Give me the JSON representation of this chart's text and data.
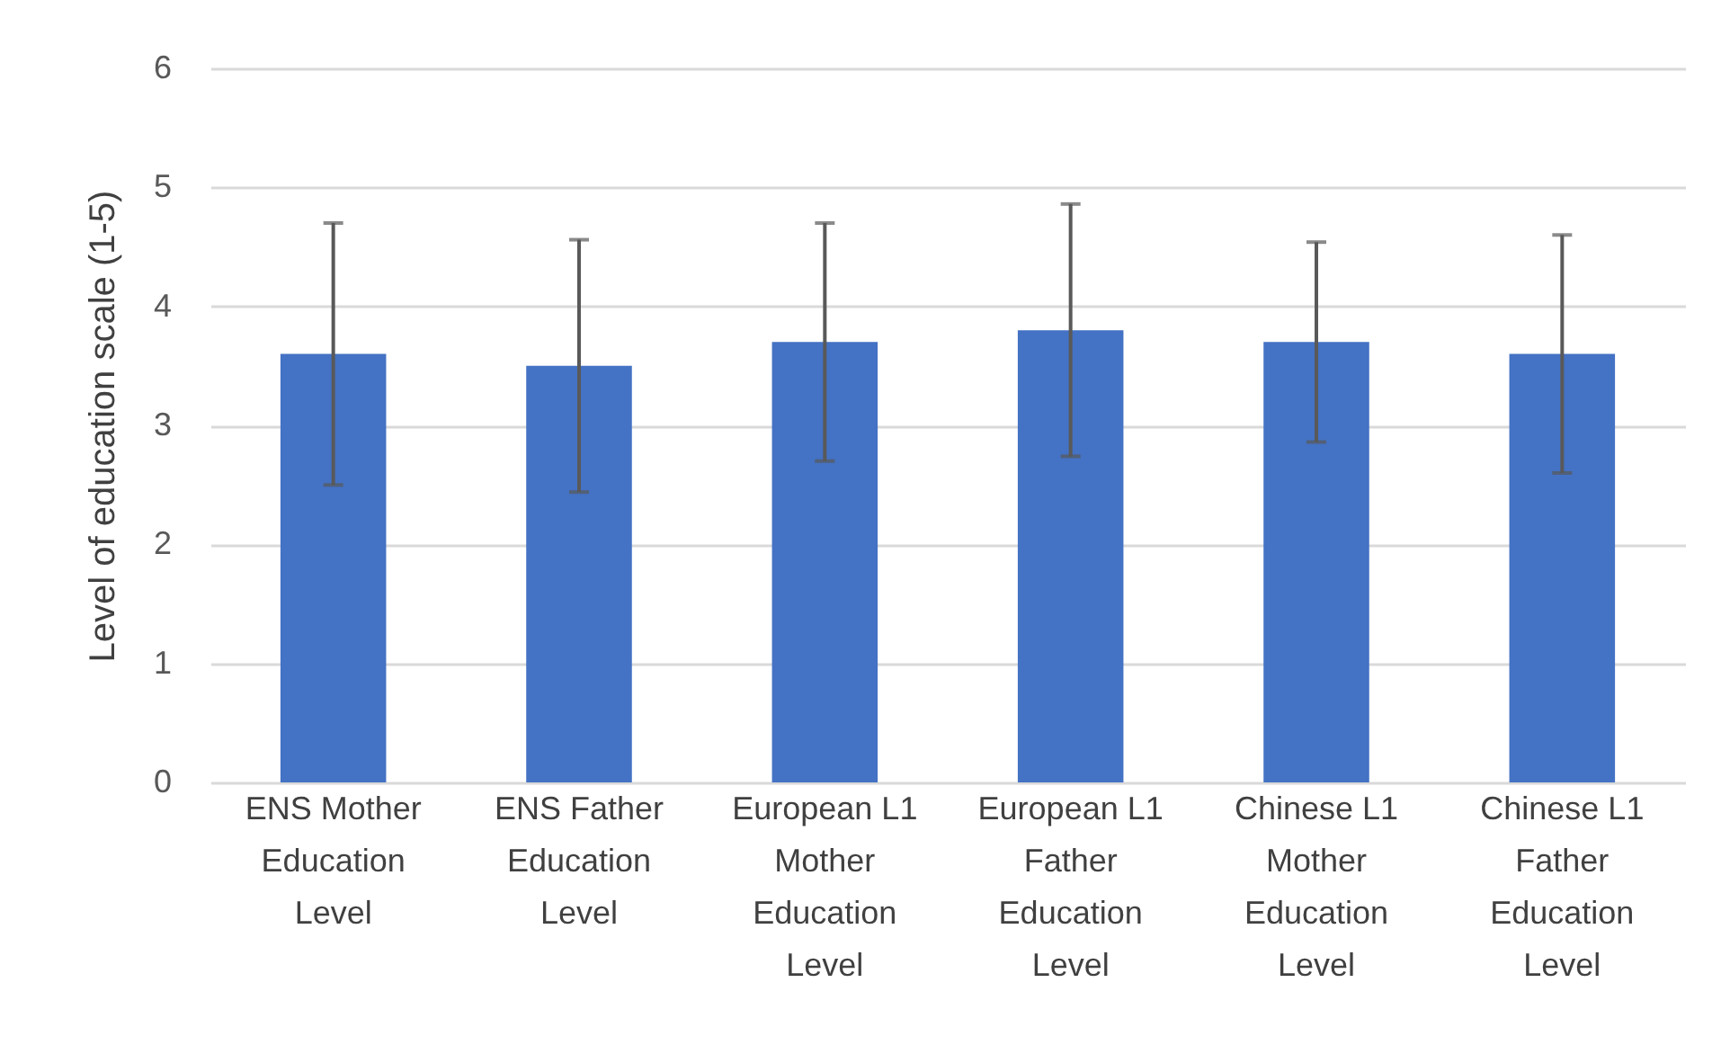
{
  "chart_data": {
    "type": "bar",
    "ylabel": "Level of education scale (1-5)",
    "categories": [
      "ENS Mother Education Level",
      "ENS Father Education Level",
      "European L1 Mother Education Level",
      "European L1 Father Education Level",
      "Chinese L1 Mother Education Level",
      "Chinese L1 Father Education Level"
    ],
    "values": [
      3.6,
      3.5,
      3.7,
      3.8,
      3.7,
      3.6
    ],
    "errors": [
      1.1,
      1.06,
      1.0,
      1.06,
      0.84,
      1.0
    ],
    "color": "#4472c4",
    "ylim": [
      0,
      6
    ],
    "yticks": [
      0,
      1,
      2,
      3,
      4,
      5,
      6
    ],
    "grid": "y"
  }
}
